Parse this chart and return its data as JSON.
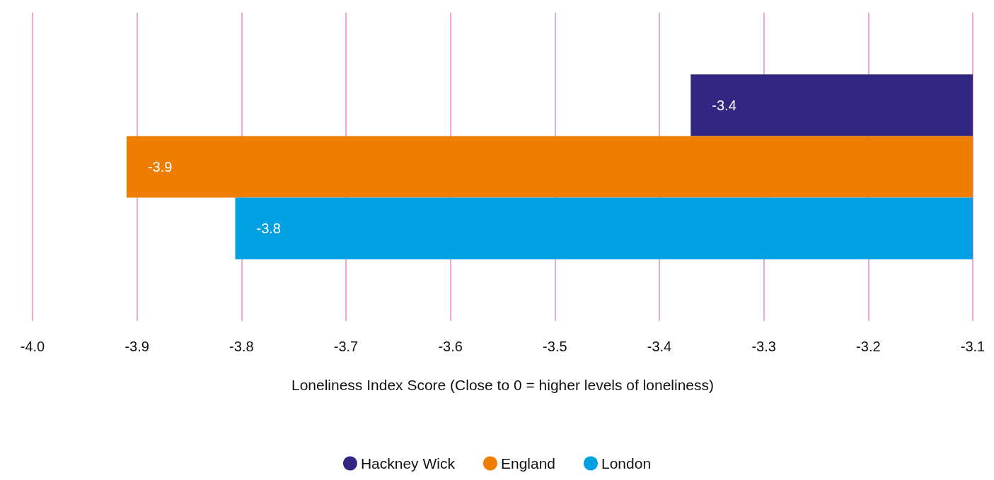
{
  "chart_data": {
    "type": "bar",
    "orientation": "horizontal",
    "xlabel": "Loneliness Index Score (Close to 0 = higher levels of loneliness)",
    "categories": [
      null
    ],
    "series": [
      {
        "name": "Hackney Wick",
        "color": "#312682",
        "values": [
          -3.37
        ],
        "value_labels": [
          "-3.4"
        ]
      },
      {
        "name": "England",
        "color": "#ef7d00",
        "values": [
          -3.91
        ],
        "value_labels": [
          "-3.9"
        ]
      },
      {
        "name": "London",
        "color": "#00a0e2",
        "values": [
          -3.806
        ],
        "value_labels": [
          "-3.8"
        ]
      }
    ],
    "xlim": [
      -4.0,
      -3.1
    ],
    "xticks": [
      {
        "value": -4.0,
        "label": "-4.0"
      },
      {
        "value": -3.9,
        "label": "-3.9"
      },
      {
        "value": -3.8,
        "label": "-3.8"
      },
      {
        "value": -3.7,
        "label": "-3.7"
      },
      {
        "value": -3.6,
        "label": "-3.6"
      },
      {
        "value": -3.5,
        "label": "-3.5"
      },
      {
        "value": -3.4,
        "label": "-3.4"
      },
      {
        "value": -3.3,
        "label": "-3.3"
      },
      {
        "value": -3.2,
        "label": "-3.2"
      },
      {
        "value": -3.1,
        "label": "-3.1"
      }
    ],
    "grid": "x",
    "legend": "bottom",
    "marker": "circle"
  }
}
